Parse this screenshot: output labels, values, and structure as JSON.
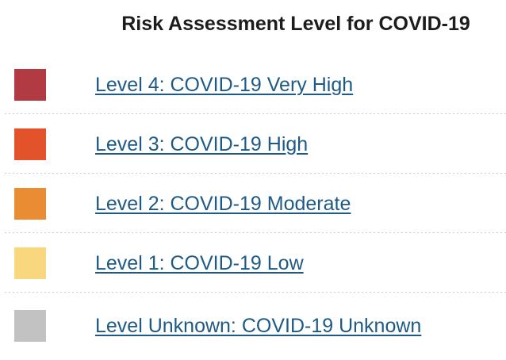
{
  "title": "Risk Assessment Level for COVID-19",
  "colors": {
    "title_text": "#1c1c1c",
    "link_text": "#1e5a87",
    "separator": "#cbcbcb",
    "background": "#ffffff"
  },
  "levels": [
    {
      "label": "Level 4: COVID-19 Very High",
      "color": "#b23b43"
    },
    {
      "label": "Level 3: COVID-19 High",
      "color": "#e2522b"
    },
    {
      "label": "Level 2: COVID-19 Moderate",
      "color": "#ea8c33"
    },
    {
      "label": "Level 1: COVID-19 Low",
      "color": "#f9d77e"
    },
    {
      "label": "Level Unknown: COVID-19 Unknown",
      "color": "#c2c2c3"
    }
  ]
}
